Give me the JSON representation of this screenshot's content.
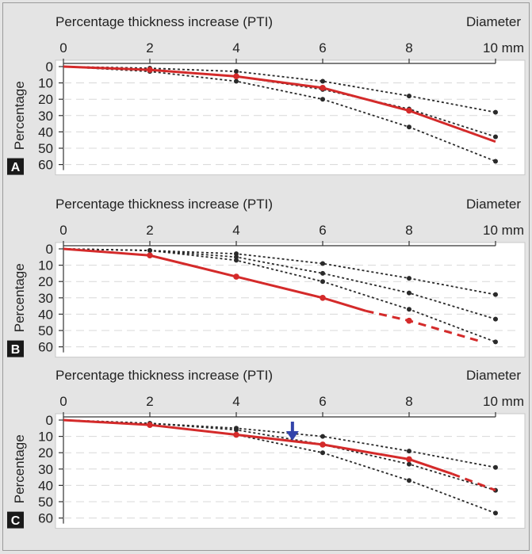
{
  "chart_data": [
    {
      "panel_label": "A",
      "type": "line",
      "title": "Percentage thickness increase (PTI)",
      "diameter_label": "Diameter",
      "xlabel": "mm",
      "ylabel": "Percentage",
      "x_ticks": [
        "0",
        "2",
        "4",
        "6",
        "8",
        "10 mm"
      ],
      "y_ticks": [
        "0",
        "10",
        "20",
        "30",
        "40",
        "50",
        "60"
      ],
      "xlim": [
        0,
        10
      ],
      "ylim": [
        0,
        60
      ],
      "y_inverted": true,
      "grid": "horizontal dashed",
      "series": [
        {
          "color": "#2a2a2a",
          "style": "dotted",
          "x": [
            0,
            2,
            4,
            6,
            8,
            10
          ],
          "y": [
            0,
            1,
            3,
            9,
            18,
            28
          ]
        },
        {
          "color": "#2a2a2a",
          "style": "dotted",
          "x": [
            0,
            2,
            4,
            6,
            8,
            10
          ],
          "y": [
            0,
            2,
            6,
            14,
            26,
            43
          ]
        },
        {
          "color": "#2a2a2a",
          "style": "dotted",
          "x": [
            0,
            2,
            4,
            6,
            8,
            10
          ],
          "y": [
            0,
            3,
            9,
            20,
            37,
            58
          ]
        },
        {
          "color": "#d42a2a",
          "style": "solid",
          "x": [
            0,
            2,
            4,
            6,
            8,
            10
          ],
          "y": [
            0,
            2,
            6,
            13,
            27,
            46
          ],
          "marker_x": [
            2,
            4,
            6,
            8
          ]
        }
      ]
    },
    {
      "panel_label": "B",
      "type": "line",
      "title": "Percentage thickness increase (PTI)",
      "diameter_label": "Diameter",
      "xlabel": "mm",
      "ylabel": "Percentage",
      "x_ticks": [
        "0",
        "2",
        "4",
        "6",
        "8",
        "10 mm"
      ],
      "y_ticks": [
        "0",
        "10",
        "20",
        "30",
        "40",
        "50",
        "60"
      ],
      "xlim": [
        0,
        10
      ],
      "ylim": [
        0,
        60
      ],
      "y_inverted": true,
      "grid": "horizontal dashed",
      "series": [
        {
          "color": "#2a2a2a",
          "style": "dotted",
          "x": [
            0,
            2,
            4,
            6,
            8,
            10
          ],
          "y": [
            0,
            1,
            3,
            9,
            18,
            28
          ]
        },
        {
          "color": "#2a2a2a",
          "style": "dotted",
          "x": [
            0,
            2,
            4,
            6,
            8,
            10
          ],
          "y": [
            0,
            1,
            5,
            15,
            27,
            43
          ]
        },
        {
          "color": "#2a2a2a",
          "style": "dotted",
          "x": [
            0,
            2,
            4,
            6,
            8,
            10
          ],
          "y": [
            0,
            1,
            7,
            20,
            37,
            57
          ]
        },
        {
          "color": "#d42a2a",
          "style": "solid",
          "x": [
            0,
            2,
            4,
            6,
            7
          ],
          "y": [
            0,
            4,
            17,
            30,
            38
          ],
          "marker_x": [
            2,
            4,
            6
          ]
        },
        {
          "color": "#d42a2a",
          "style": "dashed",
          "x": [
            7,
            8,
            9.7
          ],
          "y": [
            38,
            44,
            57
          ],
          "marker_x": [
            8
          ]
        }
      ]
    },
    {
      "panel_label": "C",
      "type": "line",
      "title": "Percentage thickness increase (PTI)",
      "diameter_label": "Diameter",
      "xlabel": "mm",
      "ylabel": "Percentage",
      "x_ticks": [
        "0",
        "2",
        "4",
        "6",
        "8",
        "10 mm"
      ],
      "y_ticks": [
        "0",
        "10",
        "20",
        "30",
        "40",
        "50",
        "60"
      ],
      "xlim": [
        0,
        10
      ],
      "ylim": [
        0,
        60
      ],
      "y_inverted": true,
      "grid": "horizontal dashed",
      "arrow": {
        "x": 5.3,
        "color": "#3344aa"
      },
      "series": [
        {
          "color": "#2a2a2a",
          "style": "dotted",
          "x": [
            0,
            2,
            4,
            6,
            8,
            10
          ],
          "y": [
            0,
            2,
            5,
            10,
            19,
            29
          ]
        },
        {
          "color": "#2a2a2a",
          "style": "dotted",
          "x": [
            0,
            2,
            4,
            6,
            8,
            10
          ],
          "y": [
            0,
            2,
            6,
            15,
            27,
            43
          ]
        },
        {
          "color": "#2a2a2a",
          "style": "dotted",
          "x": [
            0,
            2,
            4,
            6,
            8,
            10
          ],
          "y": [
            0,
            3,
            9,
            20,
            37,
            57
          ]
        },
        {
          "color": "#d42a2a",
          "style": "solid",
          "x": [
            0,
            2,
            4,
            6,
            8,
            9
          ],
          "y": [
            0,
            3,
            9,
            15,
            24,
            33
          ],
          "marker_x": [
            2,
            4,
            6,
            8
          ]
        },
        {
          "color": "#d42a2a",
          "style": "dashed",
          "x": [
            9,
            10
          ],
          "y": [
            33,
            43
          ],
          "marker_x": []
        }
      ]
    }
  ]
}
